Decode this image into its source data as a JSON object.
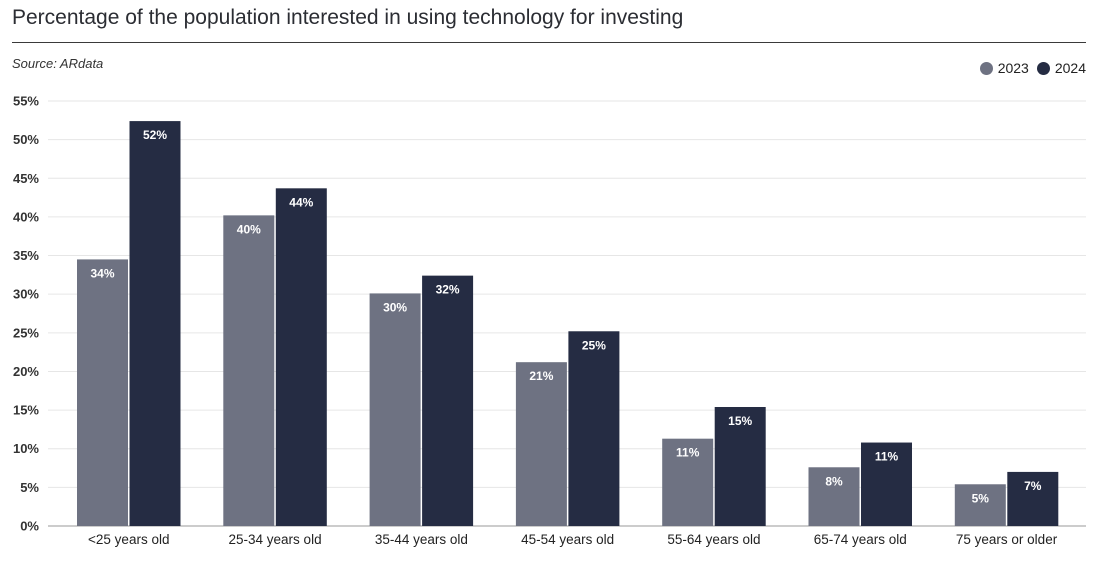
{
  "title": "Percentage of the population interested in using technology for investing",
  "source": "Source: ARdata",
  "colors": {
    "2023": "#6e7282",
    "2024": "#252c43",
    "grid": "#e6e6e6",
    "axis": "#9a9a9a"
  },
  "chart_data": {
    "type": "bar",
    "title": "Percentage of the population interested in using technology for investing",
    "xlabel": "",
    "ylabel": "",
    "ylim": [
      0,
      55
    ],
    "yticks": [
      "0%",
      "5%",
      "10%",
      "15%",
      "20%",
      "25%",
      "30%",
      "35%",
      "40%",
      "45%",
      "50%",
      "55%"
    ],
    "grid": true,
    "legend_position": "top-right",
    "categories": [
      "<25 years old",
      "25-34 years old",
      "35-44 years old",
      "45-54 years old",
      "55-64 years old",
      "65-74 years old",
      "75 years or older"
    ],
    "series": [
      {
        "name": "2023",
        "values": [
          34.5,
          40.2,
          30.1,
          21.2,
          11.3,
          7.6,
          5.4
        ],
        "labels": [
          "34%",
          "40%",
          "30%",
          "21%",
          "11%",
          "8%",
          "5%"
        ]
      },
      {
        "name": "2024",
        "values": [
          52.4,
          43.7,
          32.4,
          25.2,
          15.4,
          10.8,
          7.0
        ],
        "labels": [
          "52%",
          "44%",
          "32%",
          "25%",
          "15%",
          "11%",
          "7%"
        ]
      }
    ]
  }
}
